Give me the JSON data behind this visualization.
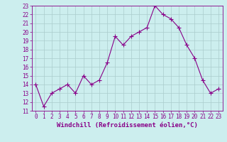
{
  "x": [
    0,
    1,
    2,
    3,
    4,
    5,
    6,
    7,
    8,
    9,
    10,
    11,
    12,
    13,
    14,
    15,
    16,
    17,
    18,
    19,
    20,
    21,
    22,
    23
  ],
  "y": [
    14,
    11.5,
    13,
    13.5,
    14,
    13,
    15,
    14,
    14.5,
    16.5,
    19.5,
    18.5,
    19.5,
    20,
    20.5,
    23,
    22,
    21.5,
    20.5,
    18.5,
    17,
    14.5,
    13,
    13.5
  ],
  "line_color": "#880088",
  "marker_color": "#880088",
  "bg_color": "#cceeee",
  "grid_color": "#aacccc",
  "xlabel": "Windchill (Refroidissement éolien,°C)",
  "ylim": [
    11,
    23
  ],
  "xlim": [
    -0.5,
    23.5
  ],
  "yticks": [
    11,
    12,
    13,
    14,
    15,
    16,
    17,
    18,
    19,
    20,
    21,
    22,
    23
  ],
  "xticks": [
    0,
    1,
    2,
    3,
    4,
    5,
    6,
    7,
    8,
    9,
    10,
    11,
    12,
    13,
    14,
    15,
    16,
    17,
    18,
    19,
    20,
    21,
    22,
    23
  ],
  "xlabel_fontsize": 6.5,
  "tick_fontsize": 5.5,
  "marker_size": 2.5,
  "line_width": 0.8
}
